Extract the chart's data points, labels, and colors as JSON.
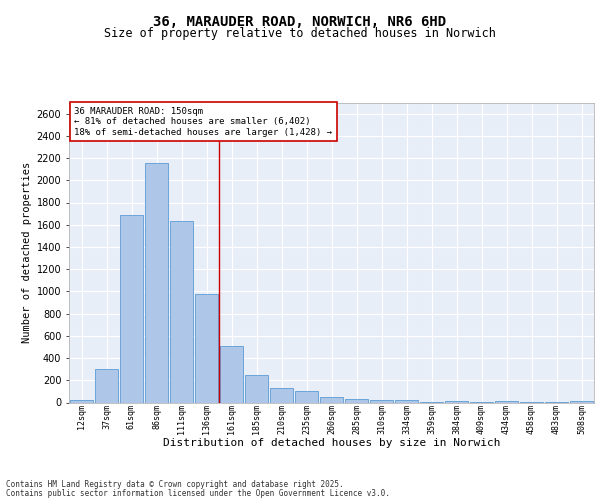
{
  "title": "36, MARAUDER ROAD, NORWICH, NR6 6HD",
  "subtitle": "Size of property relative to detached houses in Norwich",
  "xlabel": "Distribution of detached houses by size in Norwich",
  "ylabel": "Number of detached properties",
  "categories": [
    "12sqm",
    "37sqm",
    "61sqm",
    "86sqm",
    "111sqm",
    "136sqm",
    "161sqm",
    "185sqm",
    "210sqm",
    "235sqm",
    "260sqm",
    "285sqm",
    "310sqm",
    "334sqm",
    "359sqm",
    "384sqm",
    "409sqm",
    "434sqm",
    "458sqm",
    "483sqm",
    "508sqm"
  ],
  "values": [
    20,
    300,
    1690,
    2160,
    1630,
    980,
    510,
    245,
    135,
    100,
    50,
    30,
    25,
    20,
    5,
    15,
    3,
    10,
    2,
    2,
    15
  ],
  "bar_color": "#aec6e8",
  "bar_edge_color": "#5b9bd5",
  "property_line_x": 5.5,
  "property_line_color": "#cc0000",
  "annotation_text": "36 MARAUDER ROAD: 150sqm\n← 81% of detached houses are smaller (6,402)\n18% of semi-detached houses are larger (1,428) →",
  "annotation_box_color": "#cc0000",
  "ylim": [
    0,
    2700
  ],
  "yticks": [
    0,
    200,
    400,
    600,
    800,
    1000,
    1200,
    1400,
    1600,
    1800,
    2000,
    2200,
    2400,
    2600
  ],
  "footer_line1": "Contains HM Land Registry data © Crown copyright and database right 2025.",
  "footer_line2": "Contains public sector information licensed under the Open Government Licence v3.0.",
  "bg_color": "#e8eef8",
  "grid_color": "#ffffff",
  "title_fontsize": 10,
  "subtitle_fontsize": 8.5,
  "ylabel_fontsize": 7.5,
  "xlabel_fontsize": 8,
  "ytick_fontsize": 7,
  "xtick_fontsize": 6,
  "annotation_fontsize": 6.5,
  "footer_fontsize": 5.5
}
